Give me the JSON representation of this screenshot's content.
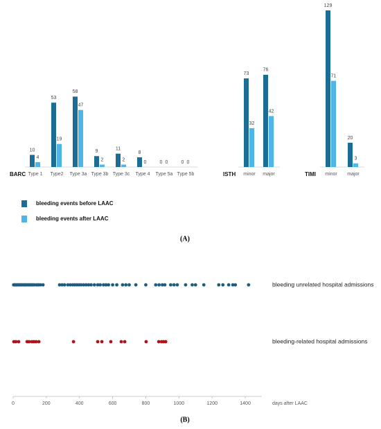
{
  "chart_data": [
    {
      "type": "bar",
      "caption": "(A)",
      "groups": [
        {
          "label": "BARC",
          "categories": [
            "Type 1",
            "Type2",
            "Type 3a",
            "Type 3b",
            "Type 3c",
            "Type 4",
            "Type 5a",
            "Type 5b"
          ]
        },
        {
          "label": "ISTH",
          "categories": [
            "minor",
            "major"
          ]
        },
        {
          "label": "TIMI",
          "categories": [
            "minor",
            "major"
          ]
        }
      ],
      "series": [
        {
          "name": "bleeding events before LAAC",
          "color": "#1b6d96",
          "values": [
            10,
            53,
            58,
            9,
            11,
            8,
            0,
            0,
            73,
            76,
            129,
            20
          ]
        },
        {
          "name": "bleeding events after LAAC",
          "color": "#4fb4e6",
          "values": [
            4,
            19,
            47,
            2,
            2,
            0,
            0,
            0,
            32,
            42,
            71,
            3
          ]
        }
      ]
    },
    {
      "type": "strip",
      "caption": "(B)",
      "xlabel": "days after LAAC",
      "xlim": [
        0,
        1500
      ],
      "xticks": [
        0,
        200,
        400,
        600,
        800,
        1000,
        1200,
        1400
      ],
      "series": [
        {
          "name": "bleeding unrelated hospital admissions",
          "color": "#1f5e7d",
          "x": [
            3,
            8,
            14,
            20,
            27,
            33,
            40,
            46,
            52,
            60,
            68,
            75,
            82,
            90,
            98,
            105,
            112,
            120,
            128,
            140,
            148,
            155,
            165,
            180,
            280,
            295,
            310,
            330,
            345,
            360,
            372,
            385,
            398,
            410,
            425,
            440,
            455,
            470,
            490,
            510,
            525,
            545,
            560,
            575,
            600,
            625,
            660,
            680,
            700,
            740,
            800,
            860,
            880,
            900,
            915,
            950,
            970,
            990,
            1040,
            1080,
            1100,
            1150,
            1240,
            1265,
            1300,
            1325,
            1340,
            1420
          ]
        },
        {
          "name": "bleeding-related hospital admissions",
          "color": "#b3111b",
          "x": [
            4,
            16,
            33,
            84,
            96,
            113,
            125,
            138,
            155,
            364,
            510,
            535,
            589,
            652,
            673,
            802,
            878,
            895,
            907,
            920
          ]
        }
      ]
    }
  ]
}
